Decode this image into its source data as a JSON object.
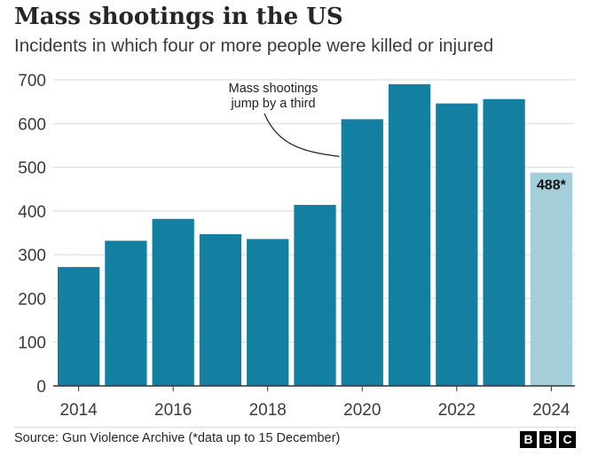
{
  "title": "Mass shootings in the US",
  "subtitle": "Incidents in which four or more people were killed or injured",
  "source": "Source: Gun Violence Archive (*data up to 15 December)",
  "logo": [
    "B",
    "B",
    "C"
  ],
  "colors": {
    "bar": "#1380A1",
    "highlight": "#A5CEDB",
    "grid": "#d9d9d9",
    "text": "#333333"
  },
  "chart_data": {
    "type": "bar",
    "categories": [
      "2014",
      "2015",
      "2016",
      "2017",
      "2018",
      "2019",
      "2020",
      "2021",
      "2022",
      "2023",
      "2024"
    ],
    "values": [
      272,
      332,
      382,
      347,
      336,
      414,
      610,
      690,
      646,
      656,
      488
    ],
    "x_tick_labels": [
      "2014",
      "2016",
      "2018",
      "2020",
      "2022",
      "2024"
    ],
    "y_ticks": [
      0,
      100,
      200,
      300,
      400,
      500,
      600,
      700
    ],
    "ylim": [
      0,
      700
    ],
    "grid": true,
    "data_labels": [
      {
        "category": "2024",
        "text": "488*"
      }
    ],
    "annotations": [
      {
        "text_lines": [
          "Mass shootings",
          "jump by a third"
        ],
        "target": "2020"
      }
    ],
    "highlighted_category": "2024"
  }
}
